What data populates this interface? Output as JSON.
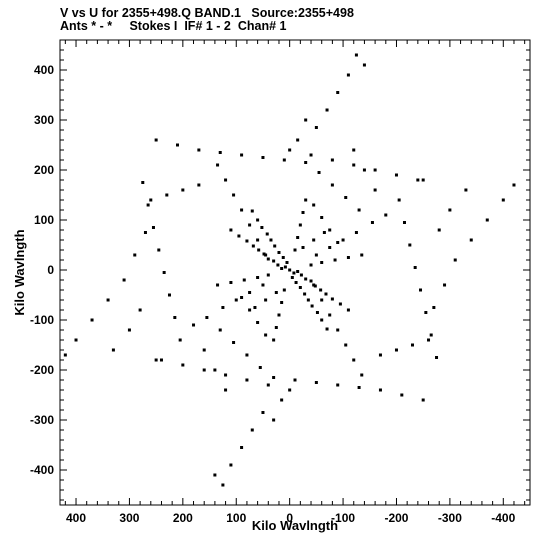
{
  "header": {
    "line1": "V vs U for 2355+498.Q BAND.1   Source:2355+498",
    "line2": "Ants * - *     Stokes I  IF# 1 - 2  Chan# 1"
  },
  "chart_data": {
    "type": "scatter",
    "xlabel": "Kilo Wavlngth",
    "ylabel": "Kilo Wavlngth",
    "xlim": [
      430,
      -450
    ],
    "ylim": [
      -470,
      460
    ],
    "x_reversed": true,
    "xticks": [
      400,
      300,
      200,
      100,
      0,
      -100,
      -200,
      -300,
      -400
    ],
    "yticks": [
      400,
      300,
      200,
      100,
      0,
      -100,
      -200,
      -300,
      -400
    ],
    "grid": false,
    "legend": "none",
    "marker_color": "#000000",
    "series": [
      {
        "points": [
          [
            0,
            0
          ],
          [
            8,
            6
          ],
          [
            -8,
            -6
          ],
          [
            15,
            3
          ],
          [
            -15,
            -3
          ],
          [
            5,
            15
          ],
          [
            -5,
            -15
          ],
          [
            22,
            10
          ],
          [
            -22,
            -10
          ],
          [
            12,
            25
          ],
          [
            -12,
            -25
          ],
          [
            30,
            18
          ],
          [
            -30,
            -18
          ],
          [
            20,
            35
          ],
          [
            -20,
            -35
          ],
          [
            40,
            22
          ],
          [
            -40,
            -22
          ],
          [
            28,
            48
          ],
          [
            -28,
            -48
          ],
          [
            48,
            32
          ],
          [
            -48,
            -32
          ],
          [
            35,
            60
          ],
          [
            -35,
            -60
          ],
          [
            58,
            40
          ],
          [
            -58,
            -40
          ],
          [
            42,
            72
          ],
          [
            -42,
            -72
          ],
          [
            68,
            48
          ],
          [
            -68,
            -48
          ],
          [
            52,
            85
          ],
          [
            -52,
            -85
          ],
          [
            80,
            58
          ],
          [
            -80,
            -58
          ],
          [
            60,
            100
          ],
          [
            -60,
            -100
          ],
          [
            95,
            68
          ],
          [
            -95,
            -68
          ],
          [
            70,
            118
          ],
          [
            -70,
            -118
          ],
          [
            110,
            80
          ],
          [
            -110,
            -80
          ],
          [
            40,
            -10
          ],
          [
            -40,
            10
          ],
          [
            60,
            -15
          ],
          [
            -60,
            15
          ],
          [
            85,
            -20
          ],
          [
            -85,
            20
          ],
          [
            110,
            -25
          ],
          [
            -110,
            25
          ],
          [
            135,
            -30
          ],
          [
            -135,
            30
          ],
          [
            -10,
            40
          ],
          [
            10,
            -40
          ],
          [
            -15,
            65
          ],
          [
            15,
            -65
          ],
          [
            -20,
            90
          ],
          [
            20,
            -90
          ],
          [
            -25,
            115
          ],
          [
            25,
            -115
          ],
          [
            -30,
            140
          ],
          [
            30,
            -140
          ],
          [
            25,
            -45
          ],
          [
            -25,
            45
          ],
          [
            45,
            -60
          ],
          [
            -45,
            60
          ],
          [
            65,
            -75
          ],
          [
            -65,
            75
          ],
          [
            -50,
            30
          ],
          [
            50,
            -30
          ],
          [
            -75,
            45
          ],
          [
            75,
            -45
          ],
          [
            -100,
            60
          ],
          [
            100,
            -60
          ],
          [
            -125,
            75
          ],
          [
            125,
            -75
          ],
          [
            245,
            40
          ],
          [
            -245,
            -40
          ],
          [
            235,
            -5
          ],
          [
            -235,
            5
          ],
          [
            255,
            85
          ],
          [
            -255,
            -85
          ],
          [
            225,
            -50
          ],
          [
            -225,
            50
          ],
          [
            265,
            130
          ],
          [
            -265,
            -130
          ],
          [
            215,
            -95
          ],
          [
            -215,
            95
          ],
          [
            275,
            175
          ],
          [
            -275,
            -175
          ],
          [
            205,
            -140
          ],
          [
            -205,
            140
          ],
          [
            130,
            235
          ],
          [
            -130,
            -235
          ],
          [
            90,
            230
          ],
          [
            -90,
            -230
          ],
          [
            170,
            240
          ],
          [
            -170,
            -240
          ],
          [
            50,
            225
          ],
          [
            -50,
            -225
          ],
          [
            210,
            250
          ],
          [
            -210,
            -250
          ],
          [
            10,
            220
          ],
          [
            -10,
            -220
          ],
          [
            250,
            260
          ],
          [
            -250,
            -260
          ],
          [
            -30,
            215
          ],
          [
            30,
            -215
          ],
          [
            -120,
            210
          ],
          [
            120,
            -210
          ],
          [
            -160,
            200
          ],
          [
            160,
            -200
          ],
          [
            -80,
            220
          ],
          [
            80,
            -220
          ],
          [
            -200,
            190
          ],
          [
            200,
            -190
          ],
          [
            -40,
            230
          ],
          [
            40,
            -230
          ],
          [
            -240,
            180
          ],
          [
            240,
            -180
          ],
          [
            0,
            240
          ],
          [
            0,
            -240
          ],
          [
            -105,
            145
          ],
          [
            105,
            -145
          ],
          [
            -130,
            120
          ],
          [
            130,
            -120
          ],
          [
            -80,
            170
          ],
          [
            80,
            -170
          ],
          [
            -155,
            95
          ],
          [
            155,
            -95
          ],
          [
            -55,
            195
          ],
          [
            55,
            -195
          ],
          [
            -50,
            285
          ],
          [
            50,
            -285
          ],
          [
            -70,
            320
          ],
          [
            70,
            -320
          ],
          [
            -90,
            355
          ],
          [
            90,
            -355
          ],
          [
            -110,
            390
          ],
          [
            110,
            -390
          ],
          [
            -125,
            430
          ],
          [
            125,
            -430
          ],
          [
            -30,
            300
          ],
          [
            30,
            -300
          ],
          [
            -15,
            260
          ],
          [
            15,
            -260
          ],
          [
            -140,
            410
          ],
          [
            140,
            -410
          ],
          [
            310,
            -20
          ],
          [
            -310,
            20
          ],
          [
            340,
            -60
          ],
          [
            -340,
            60
          ],
          [
            370,
            -100
          ],
          [
            -370,
            100
          ],
          [
            400,
            -140
          ],
          [
            -400,
            140
          ],
          [
            420,
            -170
          ],
          [
            -420,
            170
          ],
          [
            290,
            30
          ],
          [
            -290,
            -30
          ],
          [
            270,
            75
          ],
          [
            -270,
            -75
          ],
          [
            300,
            -120
          ],
          [
            -300,
            120
          ],
          [
            330,
            -160
          ],
          [
            -330,
            160
          ],
          [
            250,
            -180
          ],
          [
            -250,
            180
          ],
          [
            280,
            -80
          ],
          [
            -280,
            80
          ],
          [
            160,
            -160
          ],
          [
            -160,
            160
          ],
          [
            180,
            -110
          ],
          [
            -180,
            110
          ],
          [
            140,
            -200
          ],
          [
            -140,
            200
          ],
          [
            120,
            -240
          ],
          [
            -120,
            240
          ],
          [
            60,
            60
          ],
          [
            -60,
            -60
          ],
          [
            75,
            90
          ],
          [
            -75,
            -90
          ],
          [
            90,
            120
          ],
          [
            -90,
            -120
          ],
          [
            105,
            150
          ],
          [
            -105,
            -150
          ],
          [
            120,
            180
          ],
          [
            -120,
            -180
          ],
          [
            135,
            210
          ],
          [
            -135,
            -210
          ],
          [
            45,
            30
          ],
          [
            -45,
            -30
          ],
          [
            230,
            150
          ],
          [
            -230,
            -150
          ],
          [
            200,
            160
          ],
          [
            -200,
            -160
          ],
          [
            170,
            170
          ],
          [
            -170,
            -170
          ],
          [
            260,
            140
          ],
          [
            -260,
            -140
          ],
          [
            -60,
            105
          ],
          [
            60,
            -105
          ],
          [
            -45,
            130
          ],
          [
            45,
            -130
          ],
          [
            -75,
            80
          ],
          [
            75,
            -80
          ],
          [
            -90,
            55
          ],
          [
            90,
            -55
          ]
        ]
      }
    ]
  }
}
